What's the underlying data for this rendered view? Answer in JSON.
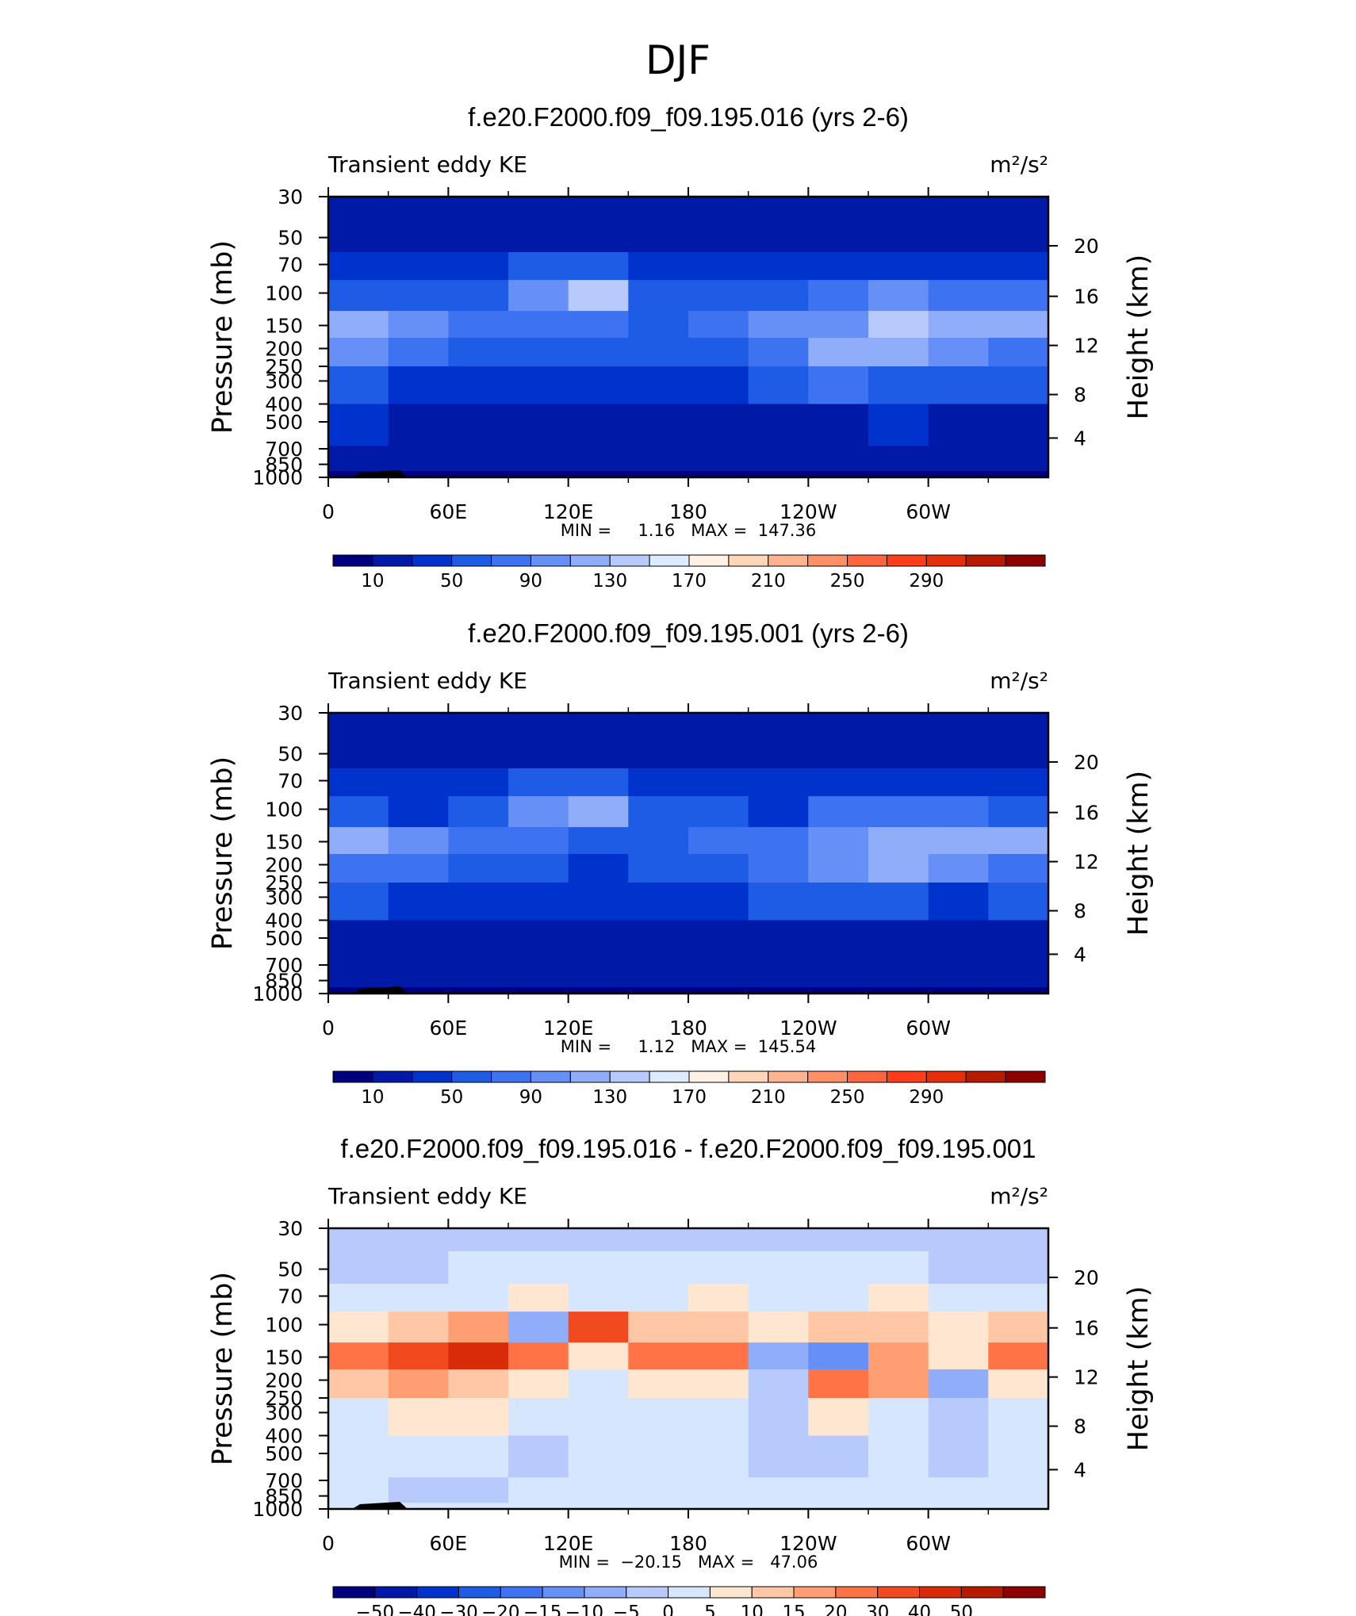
{
  "figure": {
    "title": "DJF"
  },
  "chart_data": [
    {
      "type": "heatmap",
      "title": "f.e20.F2000.f09_f09.195.016 (yrs 2-6)",
      "subtitle_left": "Transient eddy KE",
      "units": "m²/s²",
      "xlabel": "",
      "ylabel": "Pressure (mb)",
      "y2label": "Height (km)",
      "x_ticks": [
        "0",
        "60E",
        "120E",
        "180",
        "120W",
        "60W"
      ],
      "y_ticks": [
        "30",
        "50",
        "70",
        "100",
        "150",
        "200",
        "250",
        "300",
        "400",
        "500",
        "700",
        "850",
        "1000"
      ],
      "y2_ticks": [
        "20",
        "16",
        "12",
        "8",
        "4"
      ],
      "stats": "MIN =     1.16   MAX =  147.36",
      "min": 1.16,
      "max": 147.36,
      "colorbar_labels": [
        "10",
        "50",
        "90",
        "130",
        "170",
        "210",
        "250",
        "290"
      ],
      "colorbar_colors": [
        "#00007f",
        "#0019a6",
        "#0033cc",
        "#1f5ce6",
        "#3d73f0",
        "#6690f5",
        "#8fadf9",
        "#b8cafc",
        "#ddebff",
        "#fff2e5",
        "#ffd6b8",
        "#ffb38f",
        "#ff8f66",
        "#ff6640",
        "#ff3d1a",
        "#e62e0a",
        "#b81a00",
        "#8c0000"
      ],
      "rows": [
        "30",
        "50",
        "70",
        "100",
        "150",
        "200",
        "300",
        "500",
        "850",
        "1000"
      ],
      "grid": [
        [
          12,
          12,
          12,
          12,
          12,
          12,
          12,
          12,
          12,
          12,
          12,
          12
        ],
        [
          18,
          18,
          18,
          20,
          20,
          18,
          18,
          18,
          18,
          18,
          18,
          18
        ],
        [
          35,
          33,
          35,
          55,
          60,
          38,
          34,
          30,
          32,
          36,
          40,
          38
        ],
        [
          65,
          50,
          55,
          95,
          135,
          60,
          60,
          50,
          75,
          90,
          80,
          70
        ],
        [
          125,
          105,
          80,
          75,
          70,
          62,
          80,
          90,
          95,
          130,
          120,
          125
        ],
        [
          90,
          75,
          60,
          55,
          50,
          55,
          65,
          85,
          110,
          115,
          95,
          88
        ],
        [
          55,
          45,
          40,
          38,
          36,
          42,
          48,
          55,
          70,
          60,
          50,
          52
        ],
        [
          30,
          28,
          25,
          22,
          24,
          22,
          24,
          24,
          26,
          30,
          28,
          26
        ],
        [
          18,
          16,
          14,
          14,
          12,
          12,
          12,
          12,
          14,
          12,
          12,
          14
        ],
        [
          8,
          6,
          6,
          5,
          5,
          6,
          6,
          6,
          6,
          5,
          6,
          6
        ]
      ]
    },
    {
      "type": "heatmap",
      "title": "f.e20.F2000.f09_f09.195.001 (yrs 2-6)",
      "subtitle_left": "Transient eddy KE",
      "units": "m²/s²",
      "xlabel": "",
      "ylabel": "Pressure (mb)",
      "y2label": "Height (km)",
      "x_ticks": [
        "0",
        "60E",
        "120E",
        "180",
        "120W",
        "60W"
      ],
      "y_ticks": [
        "30",
        "50",
        "70",
        "100",
        "150",
        "200",
        "250",
        "300",
        "400",
        "500",
        "700",
        "850",
        "1000"
      ],
      "y2_ticks": [
        "20",
        "16",
        "12",
        "8",
        "4"
      ],
      "stats": "MIN =     1.12   MAX =  145.54",
      "min": 1.12,
      "max": 145.54,
      "colorbar_labels": [
        "10",
        "50",
        "90",
        "130",
        "170",
        "210",
        "250",
        "290"
      ],
      "colorbar_colors": [
        "#00007f",
        "#0019a6",
        "#0033cc",
        "#1f5ce6",
        "#3d73f0",
        "#6690f5",
        "#8fadf9",
        "#b8cafc",
        "#ddebff",
        "#fff2e5",
        "#ffd6b8",
        "#ffb38f",
        "#ff8f66",
        "#ff6640",
        "#ff3d1a",
        "#e62e0a",
        "#b81a00",
        "#8c0000"
      ],
      "rows": [
        "30",
        "50",
        "70",
        "100",
        "150",
        "200",
        "300",
        "500",
        "850",
        "1000"
      ],
      "grid": [
        [
          12,
          12,
          12,
          12,
          12,
          12,
          12,
          12,
          12,
          12,
          12,
          12
        ],
        [
          18,
          18,
          18,
          20,
          20,
          18,
          18,
          18,
          18,
          18,
          18,
          18
        ],
        [
          35,
          32,
          34,
          50,
          55,
          38,
          34,
          30,
          32,
          36,
          38,
          36
        ],
        [
          60,
          48,
          52,
          92,
          128,
          58,
          58,
          48,
          70,
          85,
          75,
          66
        ],
        [
          110,
          95,
          72,
          70,
          65,
          58,
          70,
          80,
          90,
          125,
          112,
          115
        ],
        [
          85,
          70,
          58,
          52,
          48,
          52,
          60,
          78,
          105,
          110,
          90,
          82
        ],
        [
          52,
          42,
          38,
          36,
          34,
          40,
          45,
          52,
          66,
          58,
          48,
          50
        ],
        [
          28,
          26,
          24,
          22,
          22,
          22,
          22,
          22,
          24,
          28,
          26,
          24
        ],
        [
          16,
          15,
          14,
          13,
          12,
          12,
          12,
          12,
          13,
          12,
          12,
          13
        ],
        [
          7,
          6,
          6,
          5,
          5,
          6,
          6,
          6,
          6,
          5,
          6,
          6
        ]
      ]
    },
    {
      "type": "heatmap",
      "title": "f.e20.F2000.f09_f09.195.016 - f.e20.F2000.f09_f09.195.001",
      "subtitle_left": "Transient eddy KE",
      "units": "m²/s²",
      "xlabel": "",
      "ylabel": "Pressure (mb)",
      "y2label": "Height (km)",
      "x_ticks": [
        "0",
        "60E",
        "120E",
        "180",
        "120W",
        "60W"
      ],
      "y_ticks": [
        "30",
        "50",
        "70",
        "100",
        "150",
        "200",
        "250",
        "300",
        "400",
        "500",
        "700",
        "850",
        "1000"
      ],
      "y2_ticks": [
        "20",
        "16",
        "12",
        "8",
        "4"
      ],
      "stats": "MIN =  −20.15   MAX =   47.06",
      "min": -20.15,
      "max": 47.06,
      "colorbar_labels": [
        "−50",
        "−40",
        "−30",
        "−20",
        "−15",
        "−10",
        "−5",
        "0",
        "5",
        "10",
        "15",
        "20",
        "30",
        "40",
        "50"
      ],
      "colorbar_colors": [
        "#00007f",
        "#0019a6",
        "#0033cc",
        "#1f5ce6",
        "#3d73f0",
        "#6690f5",
        "#8fadf9",
        "#b8cafc",
        "#d6e6ff",
        "#ffe6d1",
        "#ffc7a6",
        "#ff9e73",
        "#ff7347",
        "#f24a1f",
        "#d92b0a",
        "#b81a00",
        "#8c0000"
      ],
      "rows": [
        "30",
        "50",
        "70",
        "100",
        "150",
        "200",
        "300",
        "500",
        "850",
        "1000"
      ],
      "grid": [
        [
          -2,
          -2,
          -2,
          -2,
          -2,
          -2,
          -2,
          -2,
          -2,
          -2,
          -2,
          -2
        ],
        [
          -2,
          -1,
          1,
          1,
          1,
          1,
          1,
          1,
          1,
          1,
          -1,
          -2
        ],
        [
          2,
          3,
          4,
          5,
          2,
          4,
          5,
          2,
          4,
          5,
          3,
          2
        ],
        [
          8,
          12,
          15,
          -8,
          35,
          10,
          14,
          8,
          12,
          10,
          8,
          14
        ],
        [
          22,
          35,
          40,
          20,
          8,
          25,
          22,
          -10,
          -15,
          18,
          6,
          25
        ],
        [
          10,
          15,
          12,
          6,
          3,
          6,
          8,
          -5,
          25,
          18,
          -6,
          6
        ],
        [
          4,
          6,
          5,
          3,
          4,
          2,
          3,
          -4,
          6,
          4,
          -3,
          2
        ],
        [
          2,
          3,
          2,
          -1,
          2,
          1,
          2,
          -2,
          -2,
          1,
          -2,
          1
        ],
        [
          1,
          -2,
          -1,
          1,
          1,
          1,
          1,
          1,
          2,
          1,
          1,
          1
        ],
        [
          1,
          1,
          1,
          1,
          1,
          1,
          1,
          1,
          1,
          1,
          1,
          1
        ]
      ]
    }
  ]
}
